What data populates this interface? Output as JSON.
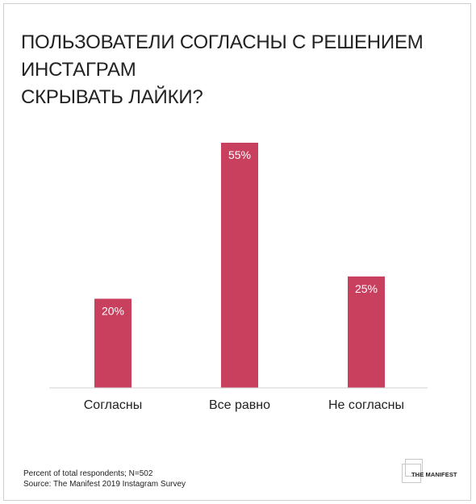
{
  "chart_data": {
    "type": "bar",
    "title_lines": [
      "ПОЛЬЗОВАТЕЛИ СОГЛАСНЫ С РЕШЕНИЕМ ИНСТАГРАМ",
      "СКРЫВАТЬ ЛАЙКИ?"
    ],
    "categories": [
      "Согласны",
      "Все равно",
      "Не согласны"
    ],
    "values": [
      20,
      55,
      25
    ],
    "data_labels": [
      "20%",
      "55%",
      "25%"
    ],
    "ylim": [
      0,
      55
    ],
    "grid": false,
    "bar_color": "#c9405f"
  },
  "footer": {
    "note": "Percent of total respondents; N=502",
    "source": "Source: The Manifest 2019 Instagram Survey"
  },
  "logo": {
    "text": "THE MANIFEST"
  }
}
